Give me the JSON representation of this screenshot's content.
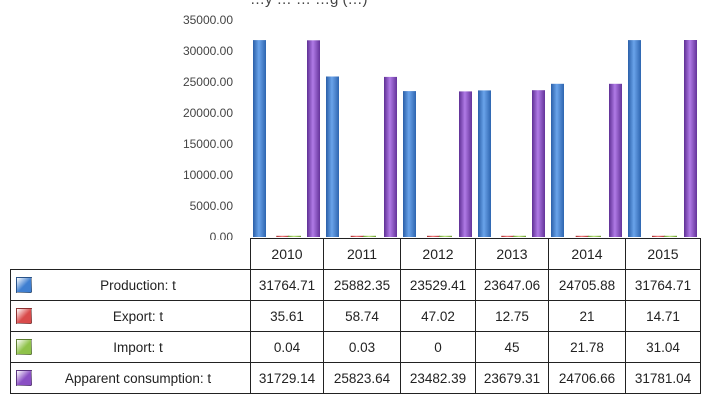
{
  "title_fragment": "…y … … …g (…)",
  "chart_data": {
    "type": "bar",
    "categories": [
      "2010",
      "2011",
      "2012",
      "2013",
      "2014",
      "2015"
    ],
    "ylim": [
      0,
      35000
    ],
    "yticks": [
      "0.00",
      "5000.00",
      "10000.00",
      "15000.00",
      "20000.00",
      "25000.00",
      "30000.00",
      "35000.00"
    ],
    "series": [
      {
        "name": "Production: t",
        "color": "#3f7fd1",
        "icon": "production-legend-icon",
        "values": [
          31764.71,
          25882.35,
          23529.41,
          23647.06,
          24705.88,
          31764.71
        ],
        "display": [
          "31764.71",
          "25882.35",
          "23529.41",
          "23647.06",
          "24705.88",
          "31764.71"
        ]
      },
      {
        "name": "Export: t",
        "color": "#d94b4b",
        "icon": "export-legend-icon",
        "values": [
          35.61,
          58.74,
          47.02,
          12.75,
          21,
          14.71
        ],
        "display": [
          "35.61",
          "58.74",
          "47.02",
          "12.75",
          "21",
          "14.71"
        ]
      },
      {
        "name": "Import: t",
        "color": "#8fc24a",
        "icon": "import-legend-icon",
        "values": [
          0.04,
          0.03,
          0,
          45,
          21.78,
          31.04
        ],
        "display": [
          "0.04",
          "0.03",
          "0",
          "45",
          "21.78",
          "31.04"
        ]
      },
      {
        "name": "Apparent consumption: t",
        "color": "#8a4fc4",
        "icon": "apparent-consumption-legend-icon",
        "values": [
          31729.14,
          25823.64,
          23482.39,
          23679.31,
          24706.66,
          31781.04
        ],
        "display": [
          "31729.14",
          "25823.64",
          "23482.39",
          "23679.31",
          "24706.66",
          "31781.04"
        ]
      }
    ],
    "gridlines": false,
    "legend": "data-table"
  }
}
